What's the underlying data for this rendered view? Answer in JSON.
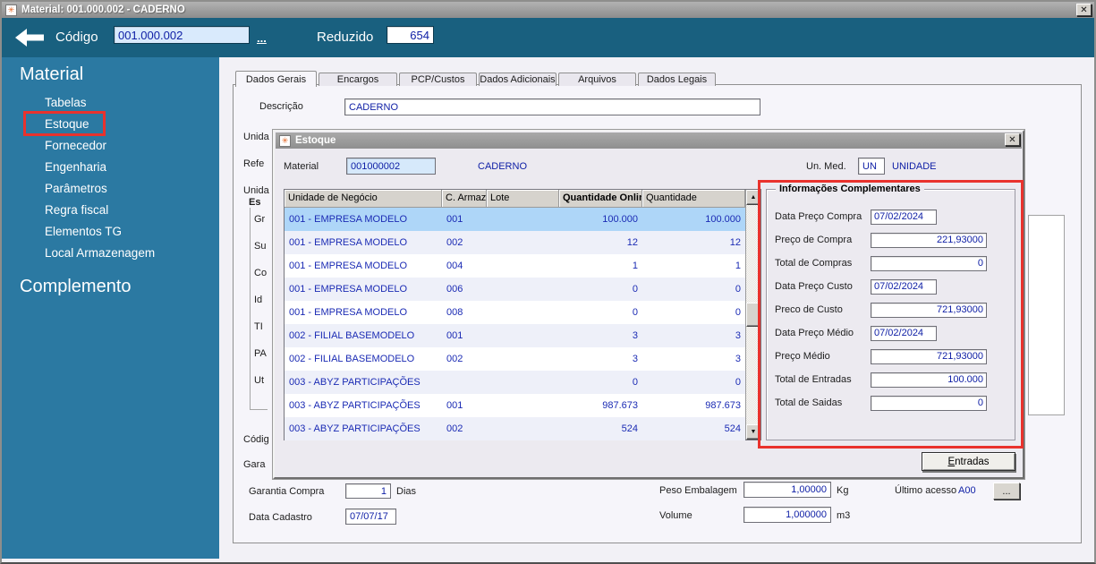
{
  "colors": {
    "header_teal": "#19607F",
    "sidebar_teal": "#2B79A2",
    "annotation_red": "#E9322D",
    "value_blue": "#1020A6",
    "selected_row_blue": "#AED6F8"
  },
  "titlebar": {
    "title": "Material: 001.000.002 - CADERNO",
    "close": "✕",
    "icon": "app-icon"
  },
  "topbar": {
    "back_icon": "back-arrow",
    "codigo_label": "Código",
    "codigo_value": "001.000.002",
    "more_link": "...",
    "reduzido_label": "Reduzido",
    "reduzido_value": "654"
  },
  "sidebar": {
    "sections": [
      {
        "title": "Material",
        "items": [
          "Tabelas",
          "Estoque",
          "Fornecedor",
          "Engenharia",
          "Parâmetros",
          "Regra fiscal",
          "Elementos TG",
          "Local Armazenagem"
        ]
      },
      {
        "title": "Complemento",
        "items": []
      }
    ],
    "highlighted_item": "Estoque"
  },
  "tabs": {
    "items": [
      "Dados Gerais",
      "Encargos",
      "PCP/Custos",
      "Dados Adicionais",
      "Arquivos",
      "Dados Legais"
    ],
    "active": "Dados Gerais"
  },
  "form": {
    "descricao_label": "Descrição",
    "descricao_value": "CADERNO",
    "clipped_labels": [
      "Unida",
      "Refe",
      "Unida",
      "Es",
      "Gr",
      "Su",
      "Co",
      "Id",
      "TI",
      "PA",
      "Ut",
      "Códig",
      "Gara"
    ],
    "garantia_label": "Garantia Compra",
    "garantia_value": "1",
    "garantia_unit": "Dias",
    "data_cadastro_label": "Data Cadastro",
    "data_cadastro_value": "07/07/17",
    "peso_label": "Peso Embalagem",
    "peso_value": "1,00000",
    "peso_unit": "Kg",
    "volume_label": "Volume",
    "volume_value": "1,000000",
    "volume_unit": "m3",
    "ultimo_acesso_label": "Último acesso",
    "ultimo_acesso_value": "A00",
    "browse_button": "..."
  },
  "modal": {
    "title": "Estoque",
    "close": "✕",
    "material_label": "Material",
    "material_value": "001000002",
    "material_desc": "CADERNO",
    "un_med_label": "Un. Med.",
    "un_med_value": "UN",
    "un_med_desc": "UNIDADE",
    "table": {
      "columns": [
        "Unidade de Negócio",
        "C. Armaz.",
        "Lote",
        "Quantidade Online",
        "Quantidade"
      ],
      "sorted_column": "Quantidade Online",
      "rows": [
        {
          "unidade": "001 - EMPRESA MODELO",
          "c_armaz": "001",
          "lote": "",
          "qtd_online": "100.000",
          "qtd": "100.000",
          "selected": true
        },
        {
          "unidade": "001 - EMPRESA MODELO",
          "c_armaz": "002",
          "lote": "",
          "qtd_online": "12",
          "qtd": "12"
        },
        {
          "unidade": "001 - EMPRESA MODELO",
          "c_armaz": "004",
          "lote": "",
          "qtd_online": "1",
          "qtd": "1"
        },
        {
          "unidade": "001 - EMPRESA MODELO",
          "c_armaz": "006",
          "lote": "",
          "qtd_online": "0",
          "qtd": "0"
        },
        {
          "unidade": "001 - EMPRESA MODELO",
          "c_armaz": "008",
          "lote": "",
          "qtd_online": "0",
          "qtd": "0"
        },
        {
          "unidade": "002 - FILIAL BASEMODELO",
          "c_armaz": "001",
          "lote": "",
          "qtd_online": "3",
          "qtd": "3"
        },
        {
          "unidade": "002 - FILIAL BASEMODELO",
          "c_armaz": "002",
          "lote": "",
          "qtd_online": "3",
          "qtd": "3"
        },
        {
          "unidade": "003 - ABYZ PARTICIPAÇÕES",
          "c_armaz": "",
          "lote": "",
          "qtd_online": "0",
          "qtd": "0"
        },
        {
          "unidade": "003 - ABYZ PARTICIPAÇÕES",
          "c_armaz": "001",
          "lote": "",
          "qtd_online": "987.673",
          "qtd": "987.673"
        },
        {
          "unidade": "003 - ABYZ PARTICIPAÇÕES",
          "c_armaz": "002",
          "lote": "",
          "qtd_online": "524",
          "qtd": "524"
        }
      ]
    },
    "info_panel": {
      "legend": "Informações Complementares",
      "fields": [
        {
          "label": "Data Preço Compra",
          "value": "07/02/2024",
          "kind": "date"
        },
        {
          "label": "Preço de Compra",
          "value": "221,93000",
          "kind": "number"
        },
        {
          "label": "Total de Compras",
          "value": "0",
          "kind": "number"
        },
        {
          "label": "Data Preço Custo",
          "value": "07/02/2024",
          "kind": "date"
        },
        {
          "label": "Preco de Custo",
          "value": "721,93000",
          "kind": "number"
        },
        {
          "label": "Data Preço Médio",
          "value": "07/02/2024",
          "kind": "date"
        },
        {
          "label": "Preço Médio",
          "value": "721,93000",
          "kind": "number"
        },
        {
          "label": "Total de Entradas",
          "value": "100.000",
          "kind": "number"
        },
        {
          "label": "Total de Saidas",
          "value": "0",
          "kind": "number"
        }
      ]
    },
    "entradas_button": "Entradas"
  }
}
